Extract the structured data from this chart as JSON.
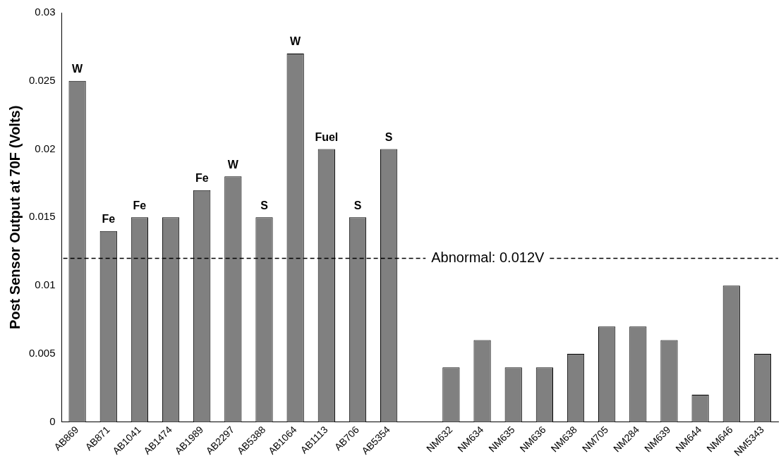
{
  "chart_data": {
    "type": "bar",
    "ylabel": "Post Sensor Output at 70F (Volts)",
    "categories": [
      "AB869",
      "AB871",
      "AB1041",
      "AB1474",
      "AB1989",
      "AB2297",
      "AB5388",
      "AB1064",
      "AB1113",
      "AB706",
      "AB5354",
      null,
      "NM632",
      "NM634",
      "NM635",
      "NM636",
      "NM638",
      "NM705",
      "NM284",
      "NM639",
      "NM644",
      "NM646",
      "NM5343"
    ],
    "values": [
      0.025,
      0.014,
      0.015,
      0.015,
      0.017,
      0.018,
      0.015,
      0.027,
      0.02,
      0.015,
      0.02,
      null,
      0.004,
      0.006,
      0.004,
      0.004,
      0.005,
      0.007,
      0.007,
      0.006,
      0.002,
      0.01,
      0.005
    ],
    "color": "#808080",
    "ylim": [
      0,
      0.03
    ],
    "yticks": [
      0,
      0.005,
      0.01,
      0.015,
      0.02,
      0.025,
      0.03
    ],
    "grid": false,
    "legend": false,
    "ref_lines": [
      {
        "axis": "y",
        "value": 0.012,
        "label": "Abnormal: 0.012V",
        "color": "#000000",
        "line_style": "dashed"
      }
    ],
    "annotations": [
      {
        "text": "W",
        "x": "AB869",
        "y": 0.025
      },
      {
        "text": "Fe",
        "x": "AB871",
        "y": 0.014
      },
      {
        "text": "Fe",
        "x": "AB1041",
        "y": 0.015
      },
      {
        "text": "Fe",
        "x": "AB1989",
        "y": 0.017
      },
      {
        "text": "W",
        "x": "AB2297",
        "y": 0.018
      },
      {
        "text": "S",
        "x": "AB5388",
        "y": 0.015
      },
      {
        "text": "W",
        "x": "AB1064",
        "y": 0.027
      },
      {
        "text": "Fuel",
        "x": "AB1113",
        "y": 0.02
      },
      {
        "text": "S",
        "x": "AB706",
        "y": 0.015
      },
      {
        "text": "S",
        "x": "AB5354",
        "y": 0.02
      }
    ]
  }
}
